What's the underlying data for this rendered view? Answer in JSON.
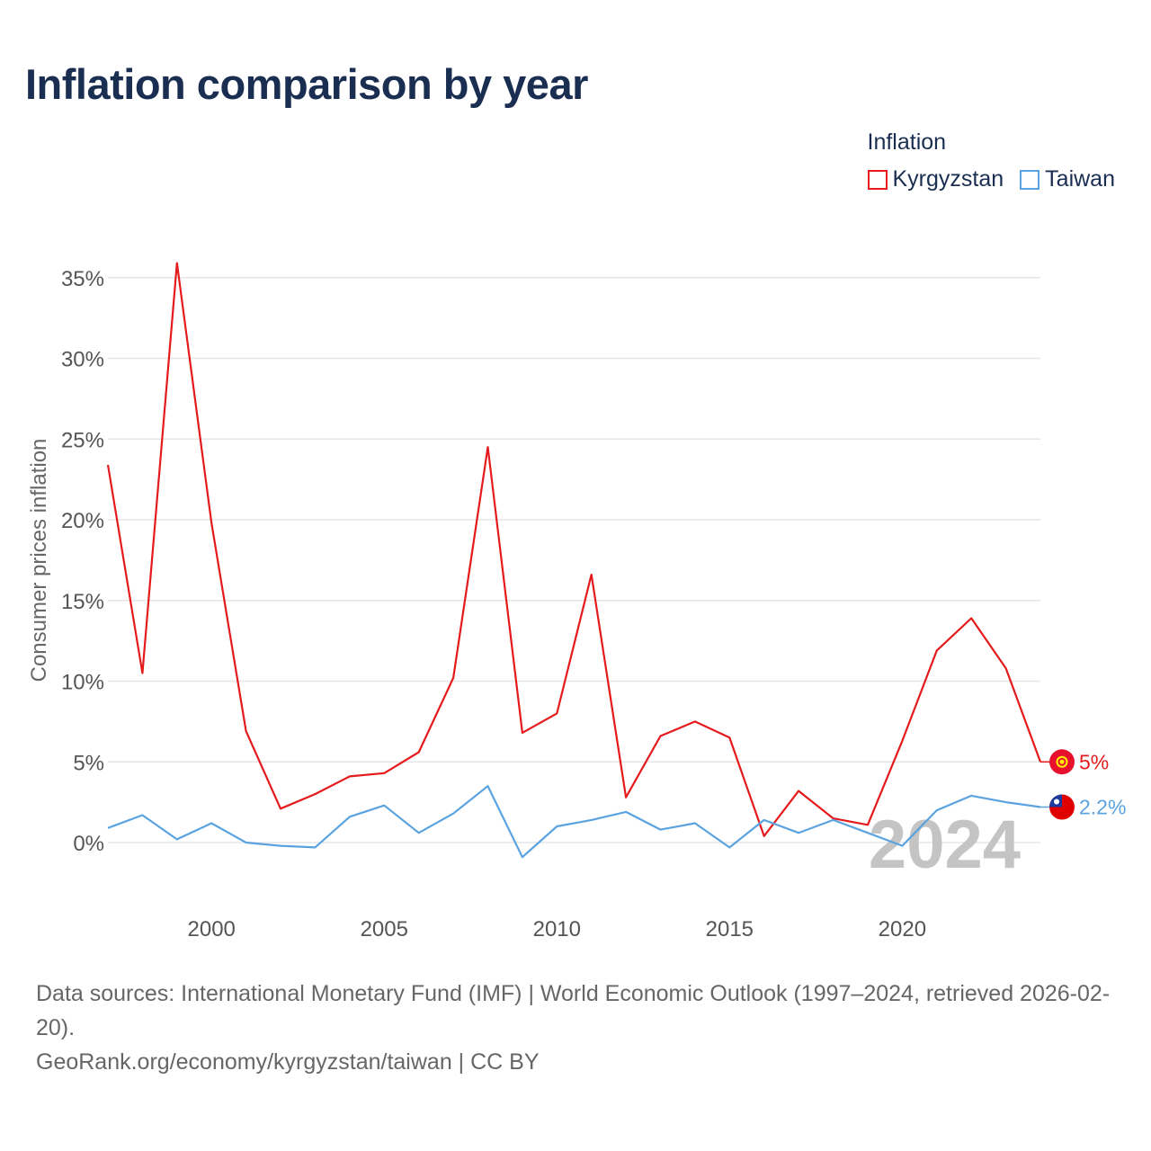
{
  "title": "Inflation comparison by year",
  "legend": {
    "title": "Inflation",
    "items": [
      {
        "name": "Kyrgyzstan",
        "color": "#e41a1c"
      },
      {
        "name": "Taiwan",
        "color": "#5aa3e0"
      }
    ]
  },
  "year_watermark": "2024",
  "footer": {
    "sources": "Data sources: International Monetary Fund (IMF) | World Economic Outlook (1997–2024, retrieved 2026-02-20).",
    "credit": "GeoRank.org/economy/kyrgyzstan/taiwan | CC BY"
  },
  "chart_data": {
    "type": "line",
    "title": "Inflation comparison by year",
    "xlabel": "",
    "ylabel": "Consumer prices inflation",
    "xlim": [
      1997,
      2024
    ],
    "ylim": [
      -3,
      36
    ],
    "x_ticks": [
      2000,
      2005,
      2010,
      2015,
      2020
    ],
    "y_ticks": [
      0,
      5,
      10,
      15,
      20,
      25,
      30,
      35
    ],
    "y_tick_labels": [
      "0%",
      "5%",
      "10%",
      "15%",
      "20%",
      "25%",
      "30%",
      "35%"
    ],
    "grid": true,
    "legend_position": "top-right",
    "x": [
      1997,
      1998,
      1999,
      2000,
      2001,
      2002,
      2003,
      2004,
      2005,
      2006,
      2007,
      2008,
      2009,
      2010,
      2011,
      2012,
      2013,
      2014,
      2015,
      2016,
      2017,
      2018,
      2019,
      2020,
      2021,
      2022,
      2023,
      2024
    ],
    "series": [
      {
        "name": "Kyrgyzstan",
        "color": "#e41a1c",
        "end_label": "5%",
        "values": [
          23.4,
          10.5,
          35.9,
          19.8,
          6.9,
          2.1,
          3.0,
          4.1,
          4.3,
          5.6,
          10.2,
          24.5,
          6.8,
          8.0,
          16.6,
          2.8,
          6.6,
          7.5,
          6.5,
          0.4,
          3.2,
          1.5,
          1.1,
          6.3,
          11.9,
          13.9,
          10.8,
          5.0
        ]
      },
      {
        "name": "Taiwan",
        "color": "#5aa3e0",
        "end_label": "2.2%",
        "values": [
          0.9,
          1.7,
          0.2,
          1.2,
          0.0,
          -0.2,
          -0.3,
          1.6,
          2.3,
          0.6,
          1.8,
          3.5,
          -0.9,
          1.0,
          1.4,
          1.9,
          0.8,
          1.2,
          -0.3,
          1.4,
          0.6,
          1.4,
          0.6,
          -0.2,
          2.0,
          2.9,
          2.5,
          2.2
        ]
      }
    ]
  }
}
